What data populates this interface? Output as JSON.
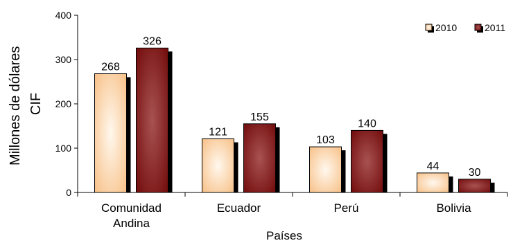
{
  "chart_data": {
    "type": "bar",
    "title": "",
    "xlabel": "Países",
    "ylabel_lines": [
      "Millones de dólares",
      "CIF"
    ],
    "categories": [
      [
        "Comunidad",
        "Andina"
      ],
      [
        "Ecuador"
      ],
      [
        "Perú"
      ],
      [
        "Bolivia"
      ]
    ],
    "series": [
      {
        "name": "2010",
        "values": [
          268,
          121,
          103,
          44
        ],
        "color_light": "#fff6ea",
        "color_dark": "#f9c898"
      },
      {
        "name": "2011",
        "values": [
          326,
          155,
          140,
          30
        ],
        "color_light": "#a84a4a",
        "color_dark": "#7a1414"
      }
    ],
    "ylim": [
      0,
      400
    ],
    "yticks": [
      0,
      100,
      200,
      300,
      400
    ],
    "data_labels": true,
    "grid": false,
    "legend_position": "top-right"
  }
}
